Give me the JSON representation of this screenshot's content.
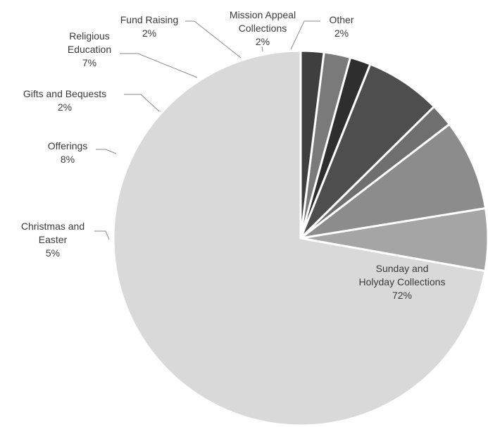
{
  "chart_data": {
    "type": "pie",
    "slices": [
      {
        "label_lines": [
          "Sunday and",
          "Holyday Collections"
        ],
        "pct_label": "72%",
        "value": 72.7,
        "color": "#d9d9d9"
      },
      {
        "label_lines": [
          "Christmas and",
          "Easter"
        ],
        "pct_label": "5%",
        "value": 5.4,
        "color": "#a5a5a5"
      },
      {
        "label_lines": [
          "Offerings"
        ],
        "pct_label": "8%",
        "value": 7.9,
        "color": "#8c8c8c"
      },
      {
        "label_lines": [
          "Gifts and Bequests"
        ],
        "pct_label": "2%",
        "value": 2.0,
        "color": "#6f6f6f"
      },
      {
        "label_lines": [
          "Religious",
          "Education"
        ],
        "pct_label": "7%",
        "value": 6.6,
        "color": "#4e4e4e"
      },
      {
        "label_lines": [
          "Fund Raising"
        ],
        "pct_label": "2%",
        "value": 1.8,
        "color": "#2e2e2e"
      },
      {
        "label_lines": [
          "Mission Appeal",
          "Collections"
        ],
        "pct_label": "2%",
        "value": 2.3,
        "color": "#7a7a7a"
      },
      {
        "label_lines": [
          "Other"
        ],
        "pct_label": "2%",
        "value": 2.0,
        "color": "#3f3f3f"
      }
    ],
    "start": "12 o'clock",
    "direction": "counterclockwise",
    "legend": "none"
  }
}
